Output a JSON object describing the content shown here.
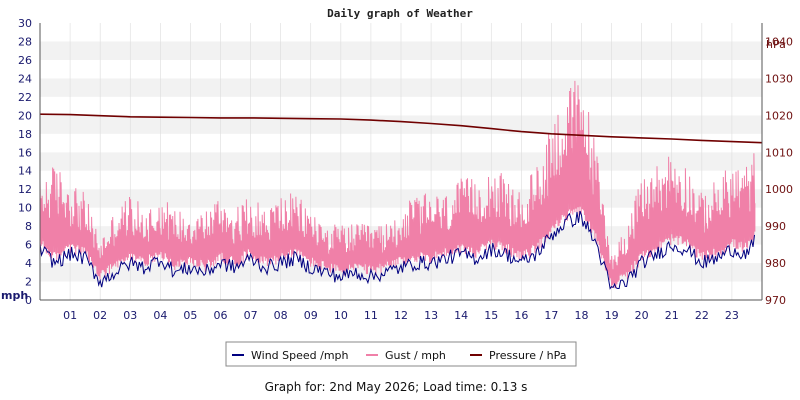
{
  "chart_data": {
    "type": "line",
    "title": "Daily graph of Weather",
    "left_axis": {
      "unit": "mph",
      "ylim": [
        0,
        30
      ],
      "ticks": [
        "0",
        "2",
        "4",
        "6",
        "8",
        "10",
        "12",
        "14",
        "16",
        "18",
        "20",
        "22",
        "24",
        "26",
        "28",
        "30"
      ]
    },
    "right_axis": {
      "unit": "hPa",
      "ylim": [
        970,
        1045
      ],
      "ticks": [
        "970",
        "980",
        "990",
        "1000",
        "1010",
        "1020",
        "1030",
        "1040"
      ]
    },
    "x_ticks": [
      "01",
      "02",
      "03",
      "04",
      "05",
      "06",
      "07",
      "08",
      "09",
      "10",
      "11",
      "12",
      "13",
      "14",
      "15",
      "16",
      "17",
      "18",
      "19",
      "20",
      "21",
      "22",
      "23"
    ],
    "xlim": [
      0,
      24
    ],
    "grid": "alternating-bands",
    "legend_placement": "bottom",
    "series": [
      {
        "name": "Wind Speed /mph",
        "color": "#000080",
        "axis": "left",
        "x": [
          0,
          0.5,
          1,
          1.5,
          2,
          2.5,
          3,
          3.5,
          4,
          4.5,
          5,
          5.5,
          6,
          6.5,
          7,
          7.5,
          8,
          8.5,
          9,
          9.5,
          10,
          10.5,
          11,
          11.5,
          12,
          12.5,
          13,
          13.5,
          14,
          14.5,
          15,
          15.5,
          16,
          16.5,
          17,
          17.5,
          18,
          18.5,
          19,
          19.5,
          20,
          20.5,
          21,
          21.5,
          22,
          22.5,
          23,
          23.5,
          23.8
        ],
        "values": [
          5.5,
          4.0,
          5.0,
          4.5,
          2.0,
          3.0,
          4.0,
          3.5,
          4.5,
          3.0,
          3.5,
          3.0,
          4.0,
          3.5,
          4.5,
          3.5,
          4.0,
          4.5,
          3.5,
          3.0,
          2.5,
          3.0,
          2.5,
          3.0,
          3.5,
          4.0,
          4.0,
          4.5,
          5.0,
          4.5,
          5.5,
          5.0,
          4.0,
          5.0,
          7.0,
          8.5,
          9.0,
          6.0,
          1.0,
          2.0,
          4.0,
          5.0,
          6.0,
          5.5,
          4.0,
          4.5,
          5.5,
          5.0,
          6.5
        ]
      },
      {
        "name": "Gust / mph",
        "color": "#f080a8",
        "axis": "left",
        "x": [
          0,
          0.5,
          1,
          1.5,
          2,
          2.5,
          3,
          3.5,
          4,
          4.5,
          5,
          5.5,
          6,
          6.5,
          7,
          7.5,
          8,
          8.5,
          9,
          9.5,
          10,
          10.5,
          11,
          11.5,
          12,
          12.5,
          13,
          13.5,
          14,
          14.5,
          15,
          15.5,
          16,
          16.5,
          17,
          17.5,
          18,
          18.5,
          19,
          19.5,
          20,
          20.5,
          21,
          21.5,
          22,
          22.5,
          23,
          23.5,
          23.8
        ],
        "values": [
          8,
          9,
          8,
          7,
          4,
          6,
          7,
          6,
          7,
          6,
          6,
          6,
          7,
          6,
          7,
          6,
          7,
          7,
          6,
          5,
          5,
          5,
          5,
          5,
          6,
          7,
          7,
          7,
          8,
          8,
          9,
          8,
          7,
          9,
          12,
          14,
          15,
          10,
          3,
          5,
          8,
          9,
          10,
          9,
          7,
          8,
          9,
          9,
          10
        ]
      },
      {
        "name": "Pressure / hPa",
        "color": "#700000",
        "axis": "right",
        "x": [
          0,
          1,
          2,
          3,
          4,
          5,
          6,
          7,
          8,
          9,
          10,
          11,
          12,
          13,
          14,
          15,
          16,
          17,
          18,
          19,
          20,
          21,
          22,
          23,
          24
        ],
        "values": [
          1020.3,
          1020.2,
          1019.9,
          1019.6,
          1019.5,
          1019.4,
          1019.3,
          1019.3,
          1019.2,
          1019.1,
          1019.0,
          1018.7,
          1018.3,
          1017.8,
          1017.2,
          1016.4,
          1015.6,
          1015.0,
          1014.6,
          1014.2,
          1013.9,
          1013.6,
          1013.2,
          1012.9,
          1012.6
        ]
      }
    ]
  },
  "footer": "Graph for: 2nd May 2026; Load time: 0.13 s",
  "colors": {
    "band_light": "#f2f2f2",
    "band_white": "#ffffff",
    "grid_line": "#dcdcdc",
    "left_axis": "#1a1a6e",
    "right_axis": "#6e1010"
  }
}
